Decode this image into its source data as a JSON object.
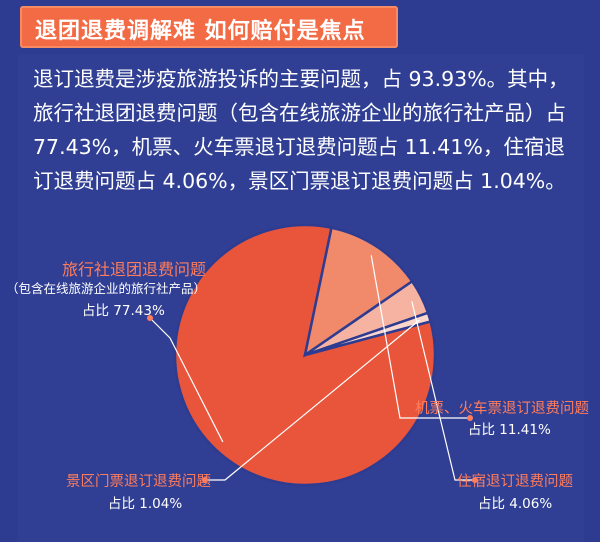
{
  "header": {
    "title": "退团退费调解难  如何赔付是焦点"
  },
  "intro_text": "退订退费是涉疫旅游投诉的主要问题，占 93.93%。其中，旅行社退团退费问题（包含在线旅游企业的旅行社产品）占 77.43%，机票、火车票退订退费问题占 11.41%，住宿退订退费问题占 4.06%，景区门票退订退费问题占 1.04%。",
  "chart_data": {
    "type": "pie",
    "total_shown_percent": 93.93,
    "slices": [
      {
        "name": "旅行社退团退费问题",
        "note": "（包含在线旅游企业的旅行社产品）",
        "value": 77.43,
        "share_label": "占比 77.43%",
        "color": "#e8553b"
      },
      {
        "name": "机票、火车票退订退费问题",
        "note": "",
        "value": 11.41,
        "share_label": "占比 11.41%",
        "color": "#f08a6b"
      },
      {
        "name": "住宿退订退费问题",
        "note": "",
        "value": 4.06,
        "share_label": "占比 4.06%",
        "color": "#f6b3a2"
      },
      {
        "name": "景区门票退订退费问题",
        "note": "",
        "value": 1.04,
        "share_label": "占比 1.04%",
        "color": "#fbd6cc"
      }
    ]
  },
  "colors": {
    "background": "#2d3c90",
    "accent": "#f26b45",
    "label_accent": "#ff7c5c",
    "text": "#ffffff"
  }
}
